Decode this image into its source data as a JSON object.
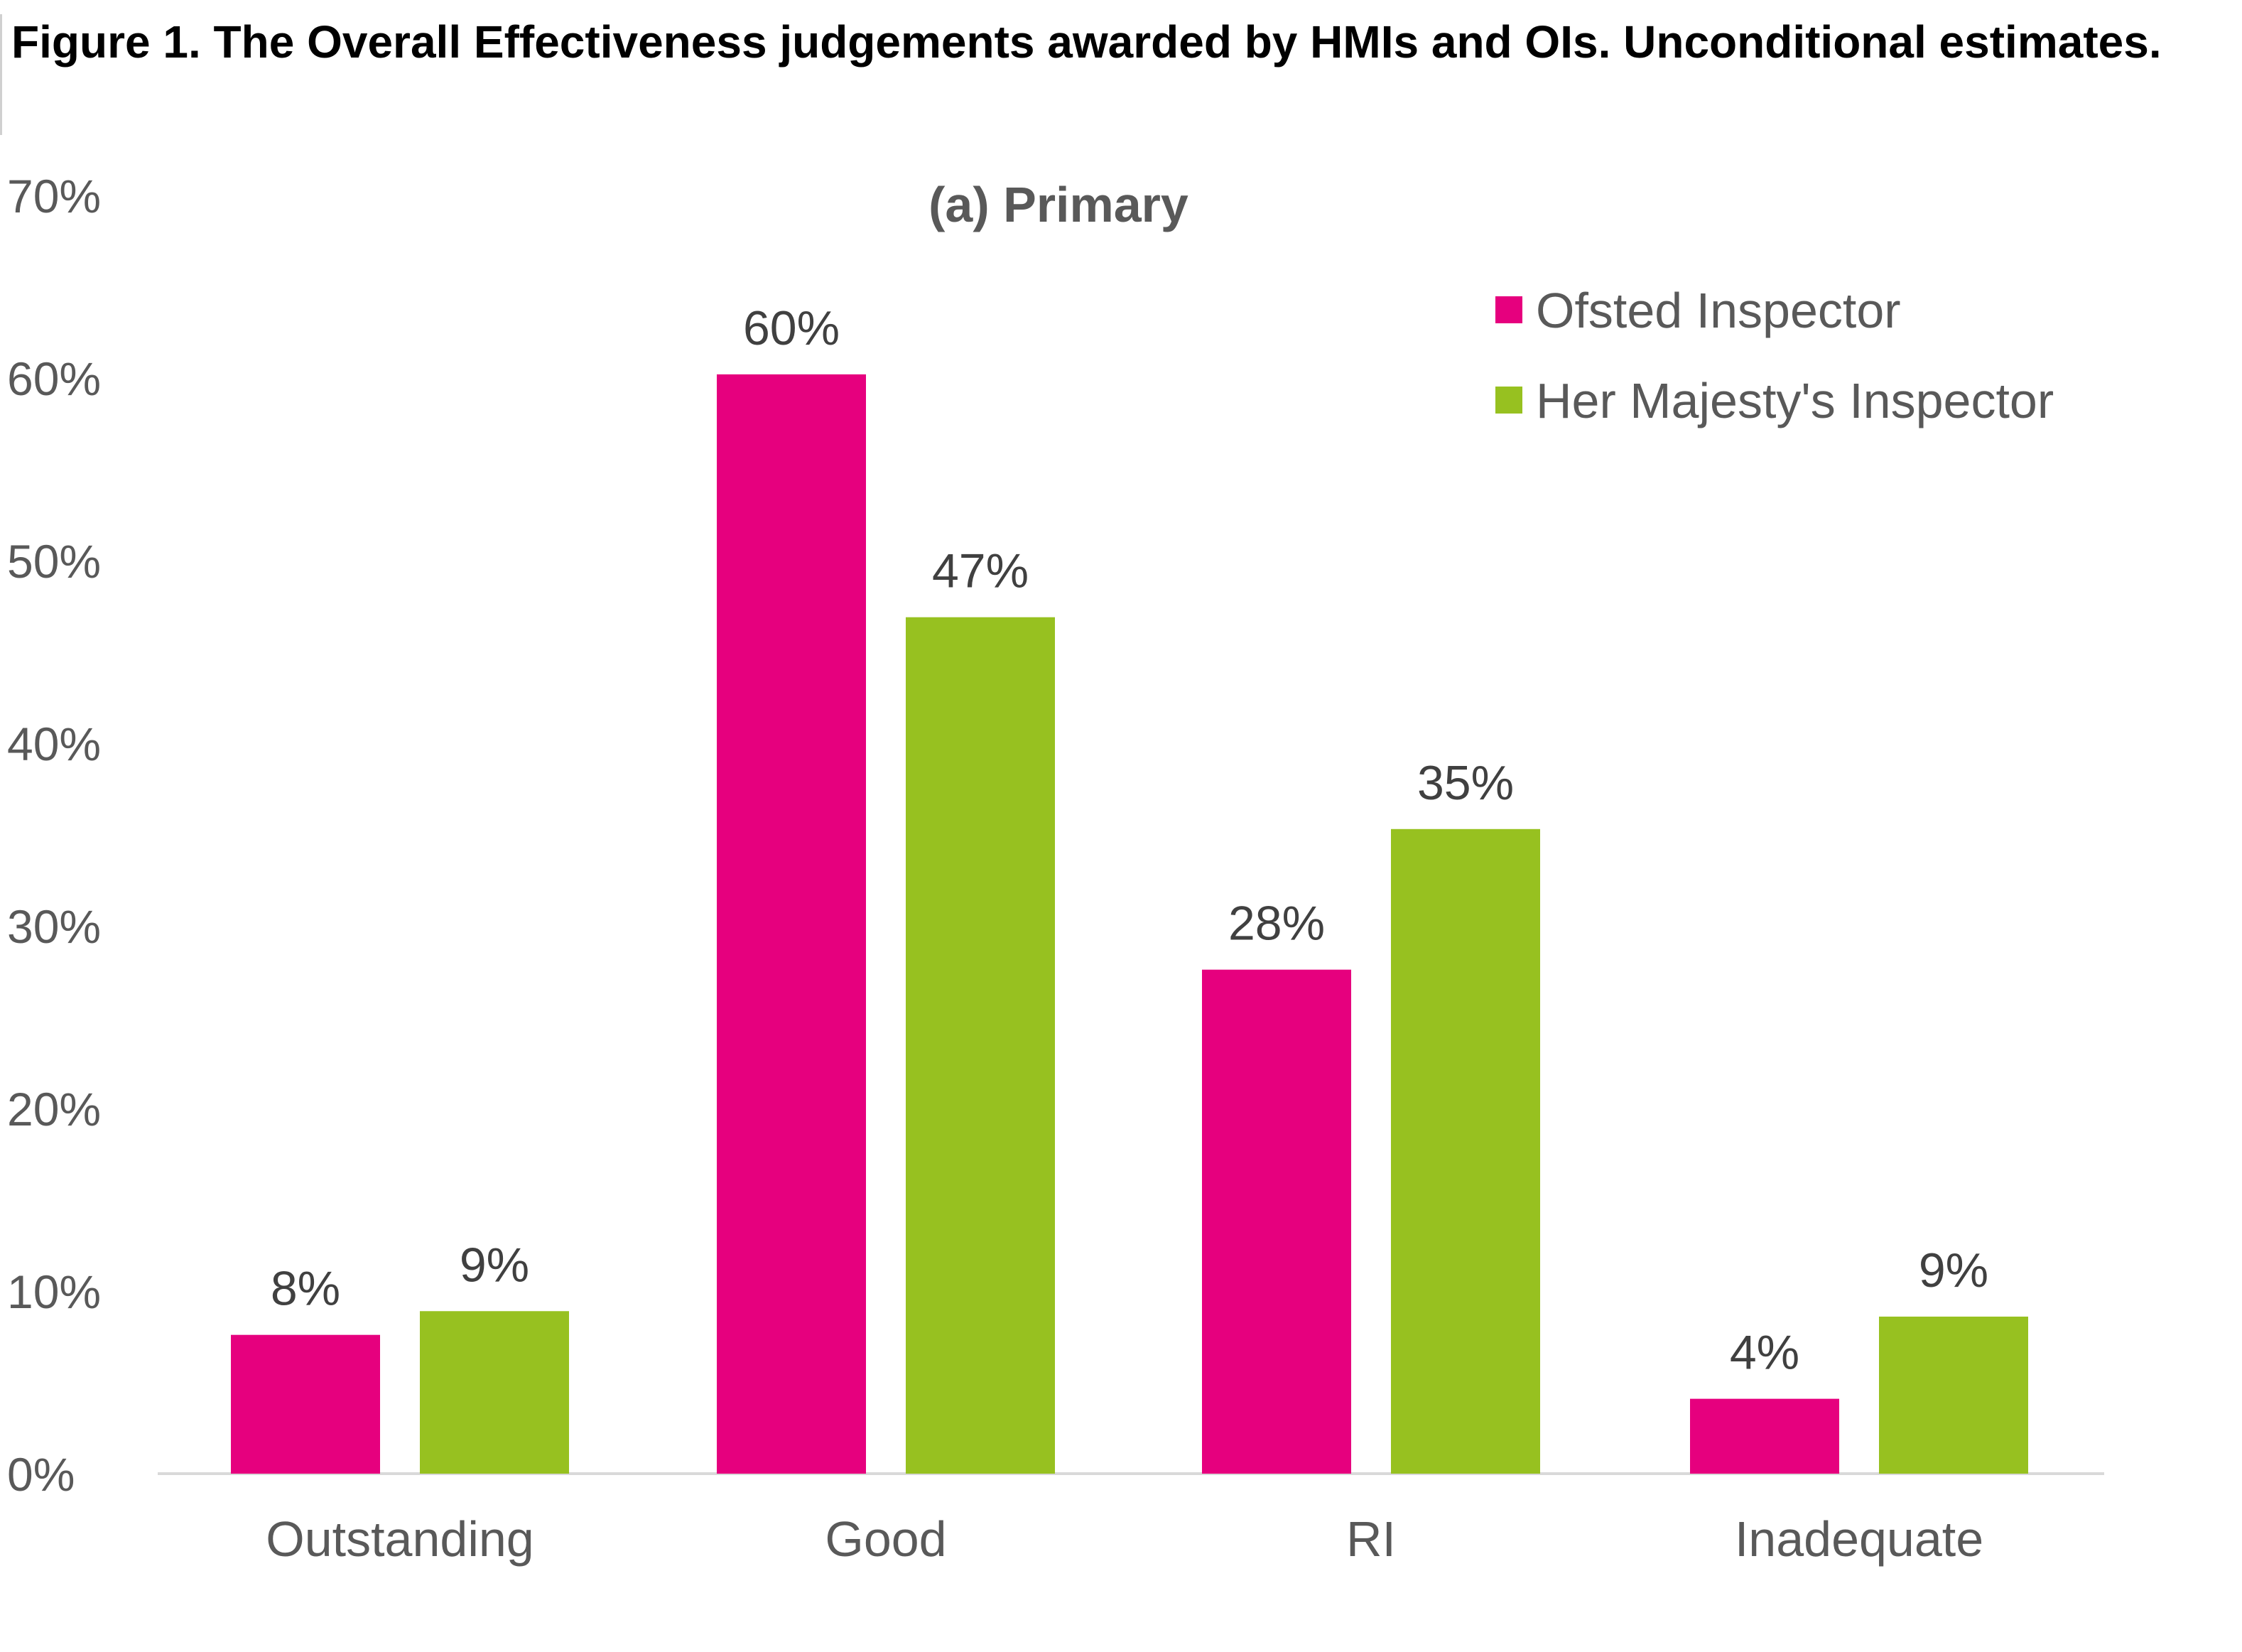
{
  "figure": {
    "title": "Figure 1. The Overall Effectiveness judgements awarded by HMIs and OIs. Unconditional estimates."
  },
  "chart_data": {
    "type": "bar",
    "title": "(a) Primary",
    "categories": [
      "Outstanding",
      "Good",
      "RI",
      "Inadequate"
    ],
    "series": [
      {
        "name": "Ofsted Inspector",
        "color": "#e6007e",
        "values": [
          8,
          60,
          28,
          4
        ]
      },
      {
        "name": "Her Majesty's Inspector",
        "color": "#97c120",
        "values": [
          9,
          47,
          35,
          9
        ]
      }
    ],
    "bar_heights_pct": [
      [
        7.6,
        60.2,
        27.6,
        4.1
      ],
      [
        8.9,
        46.9,
        35.3,
        8.6
      ]
    ],
    "value_labels": [
      [
        "8%",
        "60%",
        "28%",
        "4%"
      ],
      [
        "9%",
        "47%",
        "35%",
        "9%"
      ]
    ],
    "yticks": [
      "0%",
      "10%",
      "20%",
      "30%",
      "40%",
      "50%",
      "60%",
      "70%"
    ],
    "ylim": [
      0,
      70
    ],
    "xlabel": "",
    "ylabel": "",
    "grid": false,
    "legend_position": "top-right"
  }
}
